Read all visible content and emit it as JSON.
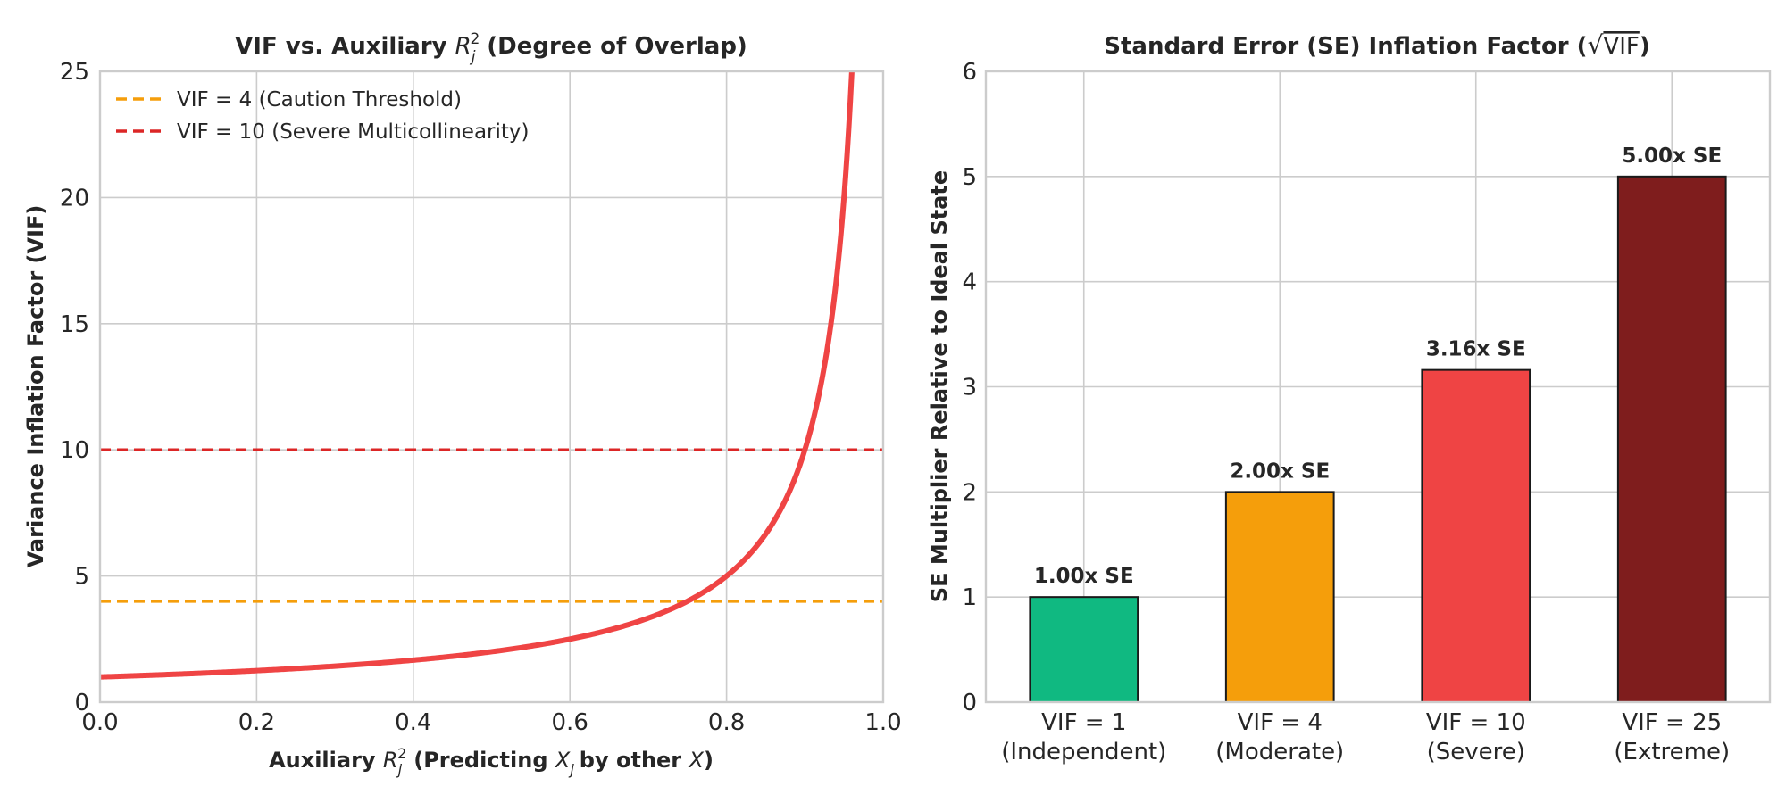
{
  "chart_data": [
    {
      "type": "line",
      "title": "VIF vs. Auxiliary",
      "title_math": "R",
      "title_math_sub": "j",
      "title_math_sup": "2",
      "title_suffix": "(Degree of Overlap)",
      "xlabel": "Auxiliary",
      "xlabel_math": "R",
      "xlabel_math_sub": "j",
      "xlabel_math_sup": "2",
      "xlabel_mid": "(Predicting",
      "xlabel_math2": "X",
      "xlabel_math2_sub": "j",
      "xlabel_mid2": "by other",
      "xlabel_math3": "X",
      "xlabel_end": ")",
      "ylabel": "Variance Inflation Factor (VIF)",
      "xlim": [
        0.0,
        1.0
      ],
      "ylim": [
        0,
        25
      ],
      "xticks": [
        "0.0",
        "0.2",
        "0.4",
        "0.6",
        "0.8",
        "1.0"
      ],
      "yticks": [
        "0",
        "5",
        "10",
        "15",
        "20",
        "25"
      ],
      "grid": true,
      "legend_position": "upper-left",
      "series": [
        {
          "formula": "VIF = 1 / (1 - R^2)",
          "color": "#ef4444",
          "x": [
            0.0,
            0.1,
            0.2,
            0.3,
            0.4,
            0.5,
            0.6,
            0.7,
            0.75,
            0.8,
            0.85,
            0.9,
            0.92,
            0.94,
            0.95,
            0.96
          ],
          "y": [
            1.0,
            1.11,
            1.25,
            1.43,
            1.67,
            2.0,
            2.5,
            3.33,
            4.0,
            5.0,
            6.67,
            10.0,
            12.5,
            16.67,
            20.0,
            25.0
          ]
        }
      ],
      "reference_lines": [
        {
          "name": "VIF = 4 (Caution Threshold)",
          "y": 4,
          "color": "#f59e0b",
          "style": "dashed"
        },
        {
          "name": "VIF = 10 (Severe Multicollinearity)",
          "y": 10,
          "color": "#dc2626",
          "style": "dashed"
        }
      ]
    },
    {
      "type": "bar",
      "title": "Standard Error (SE) Inflation Factor (",
      "title_math": "VIF",
      "title_end": ")",
      "ylabel": "SE Multiplier Relative to Ideal State",
      "ylim": [
        0,
        6
      ],
      "yticks": [
        "0",
        "1",
        "2",
        "3",
        "4",
        "5",
        "6"
      ],
      "grid": true,
      "categories": [
        {
          "line1": "VIF = 1",
          "line2": "(Independent)"
        },
        {
          "line1": "VIF = 4",
          "line2": "(Moderate)"
        },
        {
          "line1": "VIF = 10",
          "line2": "(Severe)"
        },
        {
          "line1": "VIF = 25",
          "line2": "(Extreme)"
        }
      ],
      "values": [
        1.0,
        2.0,
        3.16,
        5.0
      ],
      "data_labels": [
        "1.00x SE",
        "2.00x SE",
        "3.16x SE",
        "5.00x SE"
      ],
      "colors": [
        "#10b981",
        "#f59e0b",
        "#ef4444",
        "#7f1d1d"
      ]
    }
  ]
}
